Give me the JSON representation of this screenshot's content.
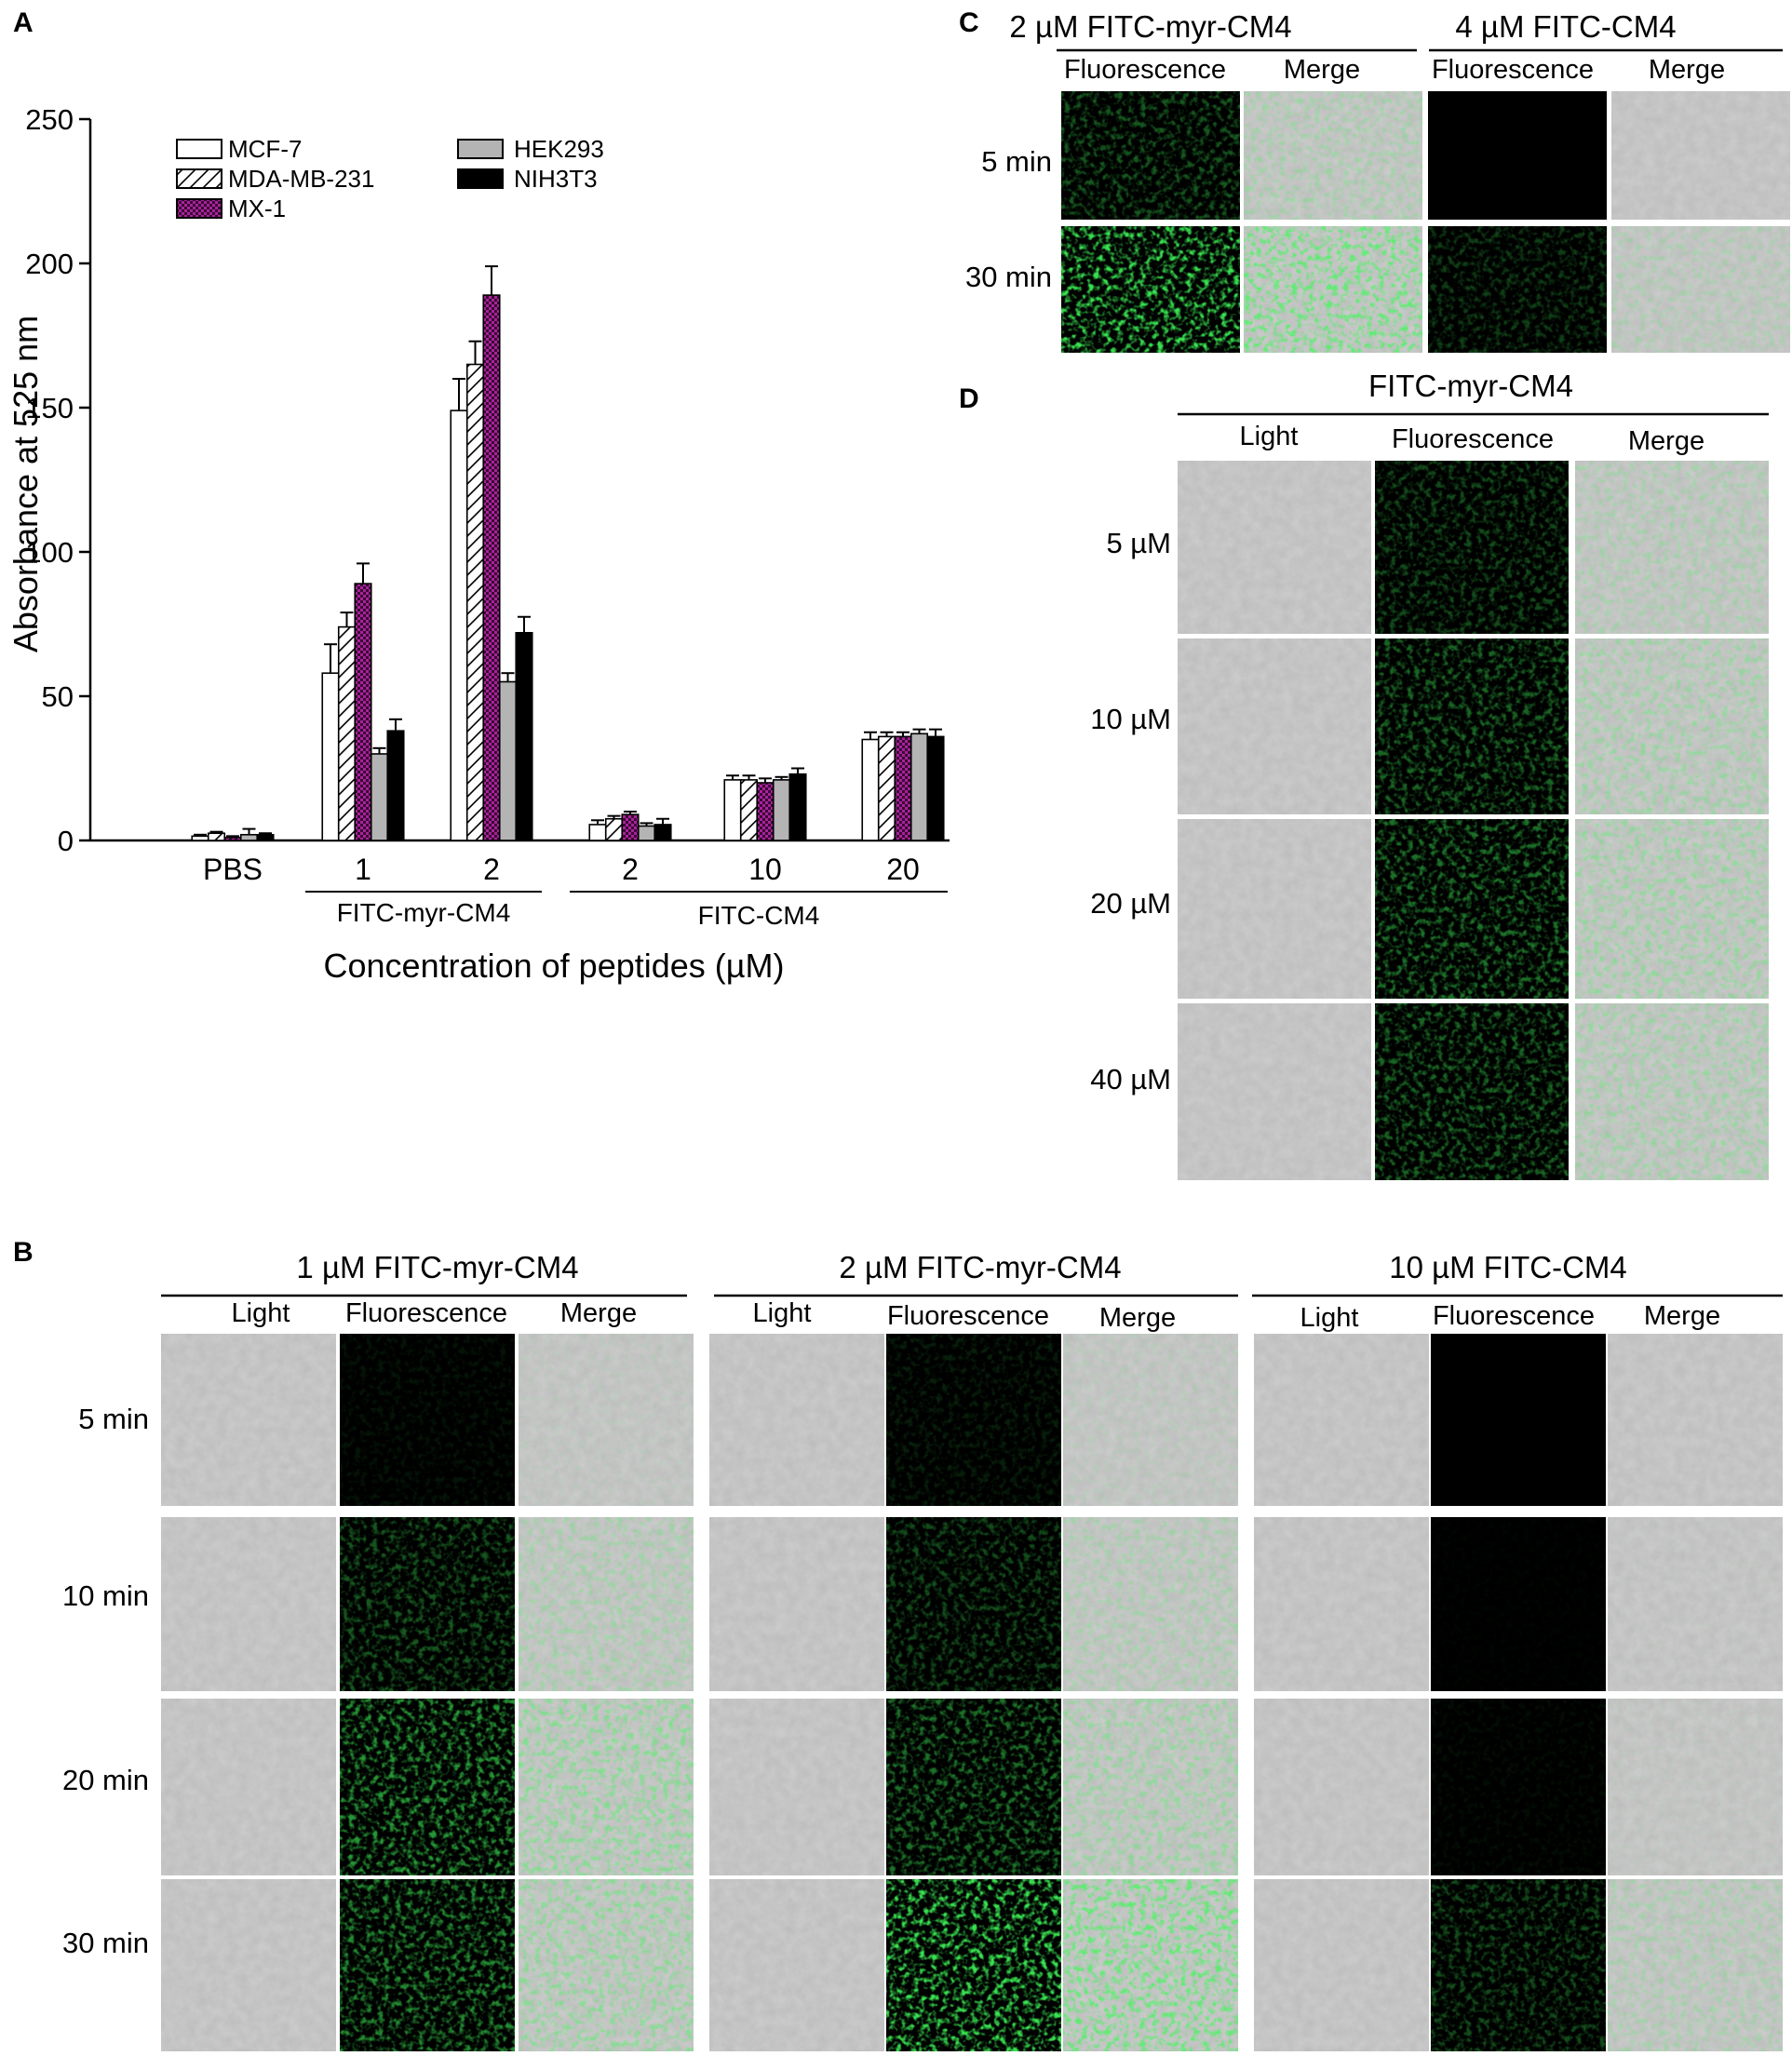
{
  "panels": {
    "a": "A",
    "b": "B",
    "c": "C",
    "d": "D"
  },
  "chart_data": {
    "type": "bar",
    "title": "",
    "ylabel": "Absorbance at 525 nm",
    "xlabel": "Concentration of peptides (µM)",
    "ylim": [
      0,
      250
    ],
    "yticks": [
      "0",
      "50",
      "100",
      "150",
      "200",
      "250"
    ],
    "legend_position": "top-left",
    "categories": [
      "PBS",
      "1",
      "2",
      "2",
      "10",
      "20"
    ],
    "groups": [
      {
        "label": "FITC-myr-CM4",
        "categories": [
          "1",
          "2"
        ]
      },
      {
        "label": "FITC-CM4",
        "categories": [
          "2",
          "10",
          "20"
        ]
      }
    ],
    "series": [
      {
        "name": "MCF-7",
        "fill": "white",
        "values": [
          1.5,
          58,
          149,
          5.5,
          21,
          35
        ],
        "errors": [
          0.5,
          10,
          11,
          1.5,
          1.5,
          2.5
        ]
      },
      {
        "name": "MDA-MB-231",
        "fill": "hatched",
        "values": [
          2.5,
          74,
          165,
          7.5,
          21,
          36
        ],
        "errors": [
          0.5,
          5,
          8,
          1,
          1.5,
          1.5
        ]
      },
      {
        "name": "MX-1",
        "fill": "magenta-checkered",
        "values": [
          1,
          89,
          189,
          9,
          20,
          36
        ],
        "errors": [
          0.5,
          7,
          10,
          1,
          1.5,
          1.5
        ]
      },
      {
        "name": "HEK293",
        "fill": "gray",
        "values": [
          2,
          30,
          55,
          5,
          21,
          37
        ],
        "errors": [
          2,
          2,
          3,
          1,
          1,
          1.5
        ]
      },
      {
        "name": "NIH3T3",
        "fill": "black",
        "values": [
          2,
          38,
          72,
          5.5,
          23,
          36
        ],
        "errors": [
          0.5,
          4,
          5.5,
          2,
          2,
          2.5
        ]
      }
    ],
    "colors": {
      "mcf7": "#ffffff",
      "mdamb231": "#ffffff",
      "mx1": "#a8229a",
      "hek293": "#b4b4b4",
      "nih3t3": "#000000"
    }
  },
  "panel_c": {
    "headers": [
      "2 µM FITC-myr-CM4",
      "4 µM FITC-CM4"
    ],
    "subheaders": [
      "Fluorescence",
      "Merge",
      "Fluorescence",
      "Merge"
    ],
    "rows": [
      "5 min",
      "30 min"
    ]
  },
  "panel_d": {
    "header": "FITC-myr-CM4",
    "subheaders": [
      "Light",
      "Fluorescence",
      "Merge"
    ],
    "rows": [
      "5 µM",
      "10 µM",
      "20 µM",
      "40 µM"
    ]
  },
  "panel_b": {
    "groups": [
      {
        "header": "1 µM FITC-myr-CM4",
        "subheaders": [
          "Light",
          "Fluorescence",
          "Merge"
        ]
      },
      {
        "header": "2 µM FITC-myr-CM4",
        "subheaders": [
          "Light",
          "Fluorescence",
          "Merge"
        ]
      },
      {
        "header": "10 µM FITC-CM4",
        "subheaders": [
          "Light",
          "Fluorescence",
          "Merge"
        ]
      }
    ],
    "rows": [
      "5 min",
      "10 min",
      "20 min",
      "30 min"
    ]
  },
  "micrograph_signal": {
    "b": [
      [
        0.08,
        0.12,
        0.0
      ],
      [
        0.35,
        0.3,
        0.02
      ],
      [
        0.6,
        0.45,
        0.05
      ],
      [
        0.55,
        0.9,
        0.3
      ]
    ],
    "c": [
      [
        0.35,
        0.0
      ],
      [
        0.9,
        0.25
      ]
    ],
    "d": [
      0.3,
      0.4,
      0.45,
      0.4
    ]
  }
}
